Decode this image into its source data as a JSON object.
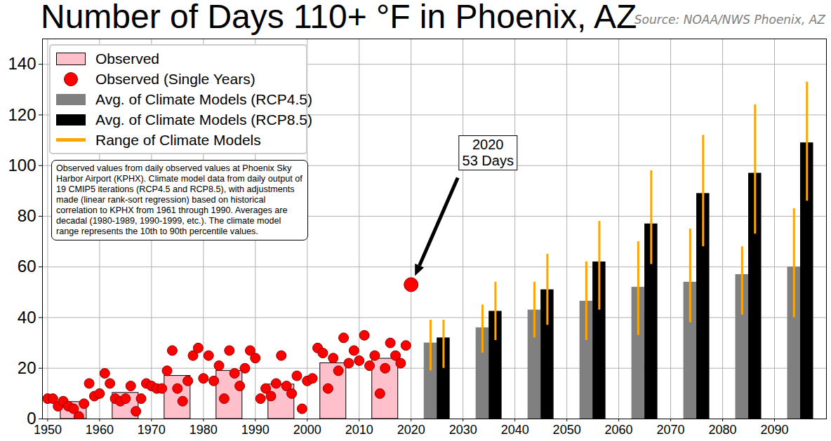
{
  "chart_data": {
    "type": "bar",
    "title": "Number of Days 110+ °F in Phoenix, AZ",
    "source": "Source: NOAA/NWS Phoenix, AZ",
    "note": "Observed values from daily observed values at Phoenix Sky Harbor Airport (KPHX). Climate model data from daily output of 19 CMIP5 iterations (RCP4.5 and RCP8.5), with adjustments made (linear rank-sort regression) based on historical correlation to KPHX from 1961 through 1990. Averages are decadal (1980-1989, 1990-1999, etc.). The climate model range represents the 10th to 90th percentile values.",
    "annotation": {
      "lines": [
        "2020",
        "53 Days"
      ],
      "x": 2020,
      "y": 53
    },
    "xlim": [
      1949,
      2100
    ],
    "xticks": [
      1950,
      1960,
      1970,
      1980,
      1990,
      2000,
      2010,
      2020,
      2030,
      2040,
      2050,
      2060,
      2070,
      2080,
      2090
    ],
    "ylim": [
      0,
      150
    ],
    "yticks": [
      0,
      20,
      40,
      60,
      80,
      100,
      120,
      140
    ],
    "grid": true,
    "legend": "upper left",
    "series": [
      {
        "name": "Observed",
        "type": "bar",
        "color": "pink",
        "x": [
          1950,
          1960,
          1970,
          1980,
          1990,
          2000,
          2010
        ],
        "values": [
          6.7,
          10.3,
          17.0,
          19.0,
          13.6,
          22.0,
          23.8
        ]
      },
      {
        "name": "Observed (Single Years)",
        "type": "scatter",
        "color": "red",
        "marker": "circle",
        "x": [
          1950,
          1951,
          1952,
          1953,
          1954,
          1955,
          1956,
          1957,
          1958,
          1959,
          1960,
          1961,
          1962,
          1963,
          1964,
          1965,
          1966,
          1967,
          1968,
          1969,
          1970,
          1971,
          1972,
          1973,
          1974,
          1975,
          1976,
          1977,
          1978,
          1979,
          1980,
          1981,
          1982,
          1983,
          1984,
          1985,
          1986,
          1987,
          1988,
          1989,
          1990,
          1991,
          1992,
          1993,
          1994,
          1995,
          1996,
          1997,
          1998,
          1999,
          2000,
          2001,
          2002,
          2003,
          2004,
          2005,
          2006,
          2007,
          2008,
          2009,
          2010,
          2011,
          2012,
          2013,
          2014,
          2015,
          2016,
          2017,
          2018,
          2019,
          2020
        ],
        "values": [
          8,
          8,
          5,
          7,
          5,
          4,
          1,
          6,
          14,
          9,
          10,
          18,
          14,
          8,
          7,
          8,
          13,
          3,
          8,
          14,
          13,
          12,
          12,
          19,
          27,
          12,
          7,
          15,
          25,
          28,
          16,
          25,
          15,
          21,
          8,
          27,
          18,
          13,
          20,
          27,
          24,
          8,
          12,
          9,
          14,
          25,
          13,
          10,
          17,
          4,
          15,
          16,
          28,
          26,
          12,
          24,
          19,
          32,
          22,
          27,
          23,
          33,
          21,
          25,
          10,
          20,
          30,
          25,
          22,
          29,
          53
        ]
      },
      {
        "name": "Avg. of Climate Models (RCP4.5)",
        "type": "bar",
        "color": "gray",
        "x": [
          2020,
          2030,
          2040,
          2050,
          2060,
          2070,
          2080,
          2090
        ],
        "values": [
          30,
          36,
          43,
          46.5,
          52,
          54,
          57,
          60
        ],
        "range_low": [
          19,
          26,
          32,
          31,
          33,
          38,
          41,
          40
        ],
        "range_high": [
          39,
          45,
          54,
          62,
          70,
          75,
          68,
          83
        ]
      },
      {
        "name": "Avg. of Climate Models (RCP8.5)",
        "type": "bar",
        "color": "black",
        "x": [
          2020,
          2030,
          2040,
          2050,
          2060,
          2070,
          2080,
          2090
        ],
        "values": [
          32,
          42.5,
          51,
          62,
          77,
          89,
          97,
          109
        ],
        "range_low": [
          20,
          31,
          37,
          43,
          61,
          68,
          73,
          86
        ],
        "range_high": [
          39,
          54,
          65,
          78,
          98,
          112,
          124,
          133
        ]
      },
      {
        "name": "Range of Climate Models",
        "type": "error_bar",
        "color": "orange"
      }
    ]
  }
}
